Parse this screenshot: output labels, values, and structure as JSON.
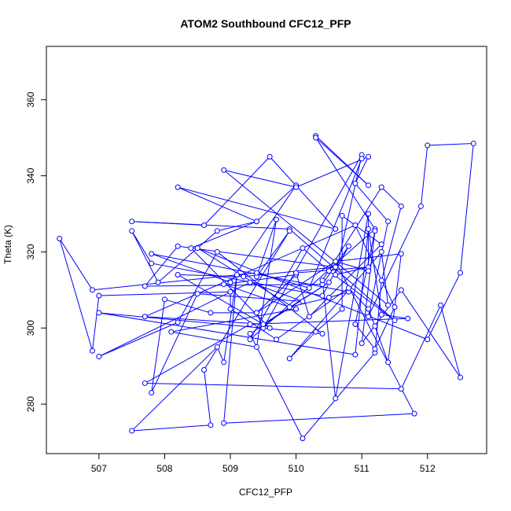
{
  "chart_data": {
    "type": "line",
    "title": "ATOM2 Southbound CFC12_PFP",
    "xlabel": "CFC12_PFP",
    "ylabel": "Theta (K)",
    "xlim": [
      506.2,
      512.9
    ],
    "ylim": [
      267,
      374
    ],
    "x_ticks": [
      507,
      508,
      509,
      510,
      511,
      512
    ],
    "y_ticks": [
      280,
      300,
      320,
      340,
      360
    ],
    "grid": false,
    "legend": "none",
    "marker": "open-circle",
    "series": [
      {
        "color": "#0000ff",
        "points": [
          [
            510.3,
            350.5
          ],
          [
            511.1,
            337.5
          ],
          [
            510.3,
            350.0
          ],
          [
            511.2,
            326.0
          ],
          [
            509.3,
            297.0
          ],
          [
            510.1,
            321.0
          ],
          [
            510.5,
            315.0
          ],
          [
            511.5,
            302.0
          ],
          [
            509.9,
            326.0
          ],
          [
            507.5,
            328.0
          ],
          [
            508.6,
            327.0
          ],
          [
            509.6,
            345.0
          ],
          [
            510.6,
            326.0
          ],
          [
            508.2,
            337.0
          ],
          [
            509.4,
            328.0
          ],
          [
            508.8,
            325.5
          ],
          [
            507.9,
            312.0
          ],
          [
            507.5,
            325.5
          ],
          [
            507.8,
            317.0
          ],
          [
            510.4,
            308.5
          ],
          [
            510.8,
            321.5
          ],
          [
            510.4,
            311.5
          ],
          [
            507.7,
            311.0
          ],
          [
            508.2,
            321.5
          ],
          [
            510.6,
            316.0
          ],
          [
            509.2,
            313.5
          ],
          [
            508.2,
            314.0
          ],
          [
            509.6,
            300.0
          ],
          [
            508.4,
            321.0
          ],
          [
            509.4,
            328.0
          ],
          [
            510.0,
            337.5
          ],
          [
            509.0,
            312.0
          ],
          [
            507.8,
            319.5
          ],
          [
            510.8,
            309.5
          ],
          [
            510.5,
            308.0
          ],
          [
            509.9,
            305.5
          ],
          [
            508.9,
            311.5
          ],
          [
            510.0,
            314.0
          ],
          [
            509.4,
            304.0
          ],
          [
            509.5,
            300.0
          ],
          [
            511.0,
            345.5
          ],
          [
            510.6,
            314.0
          ],
          [
            511.1,
            316.0
          ],
          [
            510.0,
            314.5
          ],
          [
            510.2,
            303.0
          ],
          [
            511.3,
            322.0
          ],
          [
            510.7,
            329.5
          ],
          [
            510.7,
            305.0
          ],
          [
            510.3,
            299.0
          ],
          [
            509.9,
            292.0
          ],
          [
            511.3,
            320.0
          ],
          [
            511.4,
            306.0
          ],
          [
            508.9,
            341.5
          ],
          [
            510.0,
            337.0
          ],
          [
            511.1,
            345.0
          ],
          [
            510.9,
            338.0
          ],
          [
            511.4,
            328.0
          ],
          [
            511.1,
            303.0
          ],
          [
            511.9,
            332.0
          ],
          [
            512.0,
            348.0
          ],
          [
            512.7,
            348.5
          ],
          [
            512.5,
            314.5
          ],
          [
            512.0,
            297.0
          ],
          [
            508.5,
            321.0
          ],
          [
            510.0,
            305.0
          ],
          [
            508.1,
            299.0
          ],
          [
            509.4,
            295.0
          ],
          [
            509.7,
            328.5
          ],
          [
            509.4,
            313.5
          ],
          [
            509.9,
            325.5
          ],
          [
            508.6,
            289.0
          ],
          [
            508.7,
            274.5
          ],
          [
            507.5,
            273.0
          ],
          [
            508.8,
            295.0
          ],
          [
            508.9,
            291.0
          ],
          [
            509.1,
            314.0
          ],
          [
            508.9,
            275.0
          ],
          [
            511.8,
            277.5
          ],
          [
            510.6,
            317.5
          ],
          [
            511.1,
            315.0
          ],
          [
            511.1,
            330.0
          ],
          [
            510.6,
            281.5
          ],
          [
            510.4,
            312.5
          ],
          [
            511.3,
            337.0
          ],
          [
            511.6,
            332.0
          ],
          [
            511.3,
            312.5
          ],
          [
            511.2,
            293.5
          ],
          [
            510.1,
            271.0
          ],
          [
            509.3,
            298.5
          ],
          [
            510.5,
            312.0
          ],
          [
            509.5,
            301.0
          ],
          [
            507.7,
            303.0
          ],
          [
            510.9,
            327.0
          ],
          [
            511.5,
            305.5
          ],
          [
            511.2,
            294.5
          ],
          [
            510.9,
            301.0
          ],
          [
            511.2,
            325.5
          ],
          [
            511.0,
            296.0
          ],
          [
            511.6,
            310.0
          ],
          [
            512.5,
            287.0
          ],
          [
            512.2,
            306.0
          ],
          [
            511.6,
            284.0
          ],
          [
            507.7,
            285.5
          ],
          [
            509.3,
            301.0
          ],
          [
            511.7,
            302.5
          ],
          [
            511.3,
            303.5
          ],
          [
            511.1,
            326.0
          ],
          [
            510.9,
            293.0
          ],
          [
            507.0,
            304.0
          ],
          [
            510.4,
            298.5
          ],
          [
            508.8,
            320.0
          ],
          [
            508.2,
            301.5
          ],
          [
            507.0,
            292.5
          ],
          [
            509.3,
            312.0
          ],
          [
            510.1,
            307.0
          ],
          [
            508.5,
            309.0
          ],
          [
            507.8,
            283.0
          ],
          [
            508.0,
            307.5
          ],
          [
            508.7,
            304.0
          ],
          [
            509.4,
            304.0
          ],
          [
            510.6,
            317.5
          ],
          [
            511.6,
            319.5
          ],
          [
            511.4,
            291.0
          ],
          [
            511.2,
            300.5
          ],
          [
            511.1,
            305.0
          ],
          [
            510.8,
            310.5
          ],
          [
            509.7,
            297.0
          ],
          [
            509.0,
            305.0
          ],
          [
            509.0,
            309.5
          ],
          [
            507.0,
            308.5
          ],
          [
            506.9,
            294.0
          ],
          [
            506.4,
            323.5
          ],
          [
            506.9,
            310.0
          ],
          [
            509.4,
            314.5
          ],
          [
            510.2,
            310.5
          ],
          [
            511.0,
            344.5
          ]
        ]
      }
    ]
  }
}
